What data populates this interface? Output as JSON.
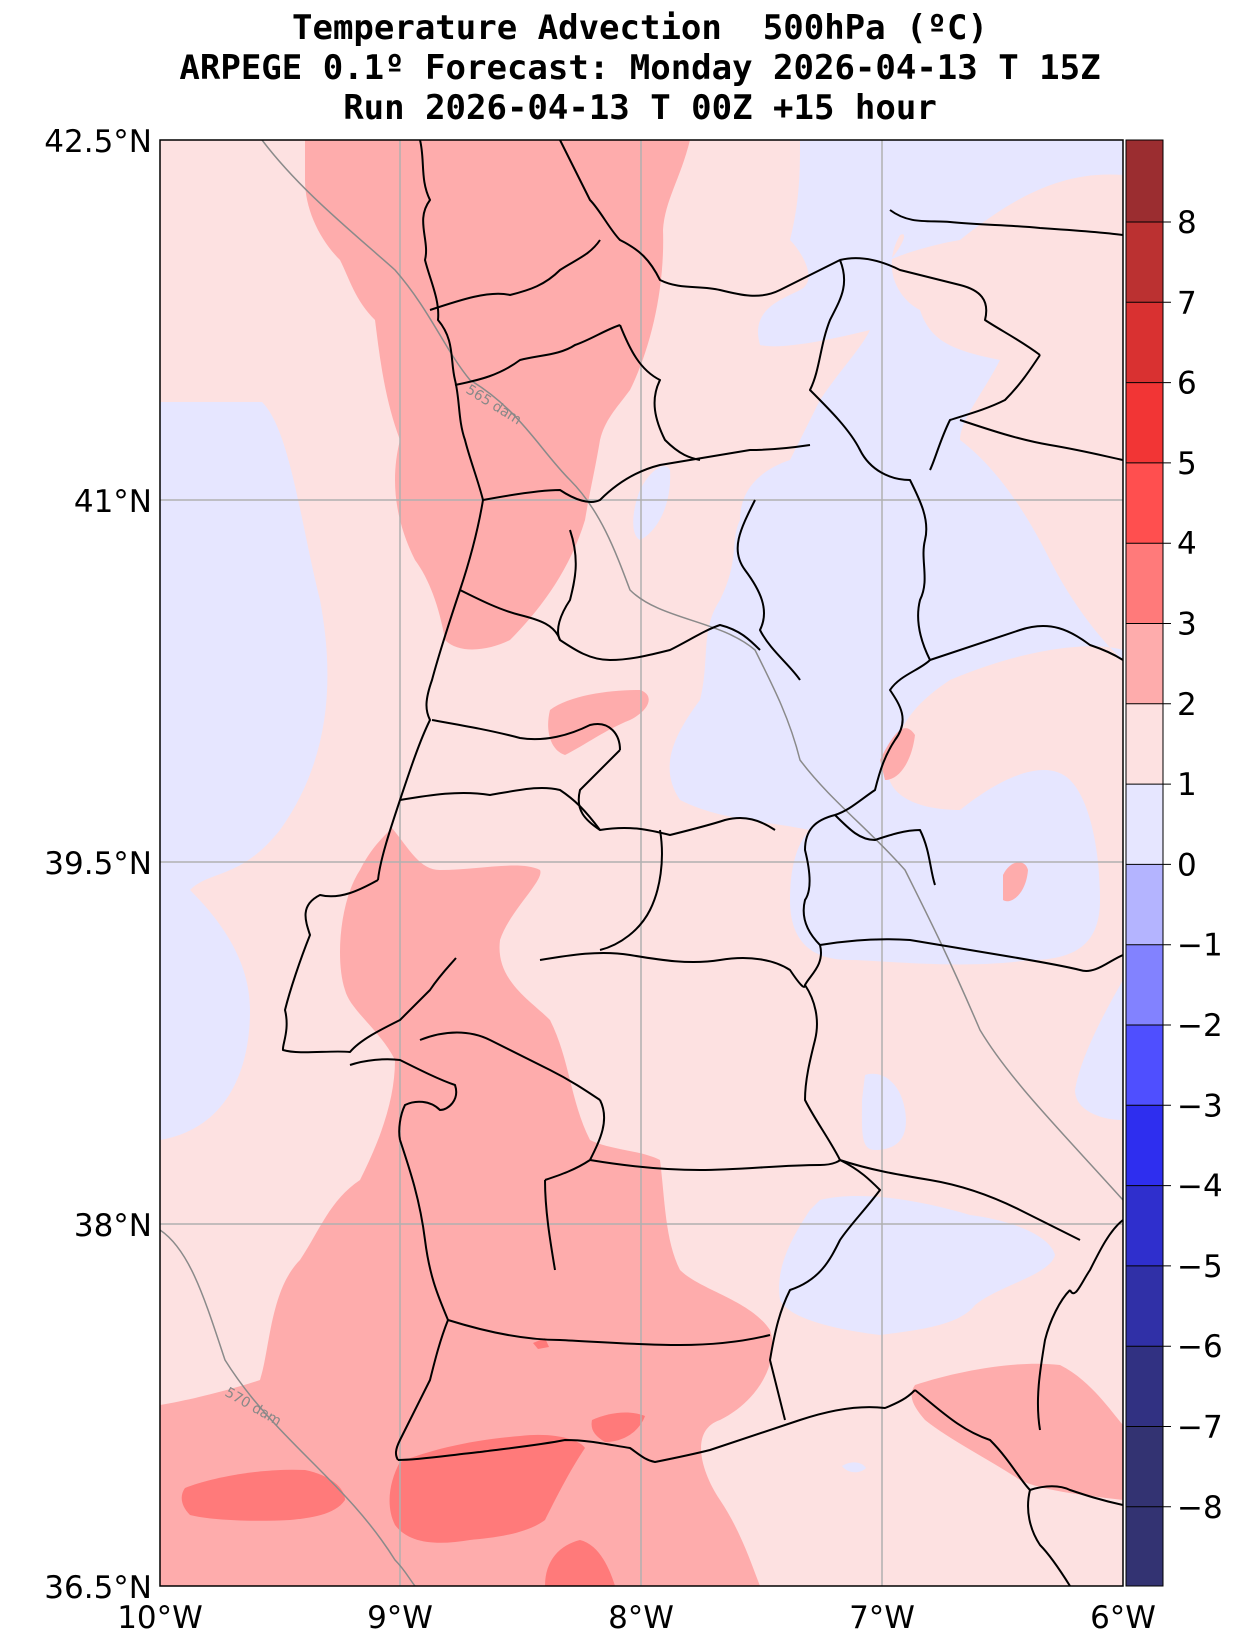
{
  "title": {
    "line1": "Temperature Advection  500hPa (ºC)",
    "line2": "ARPEGE 0.1º Forecast: Monday 2026-04-13 T 15Z",
    "line3": "Run 2026-04-13 T 00Z +15 hour"
  },
  "map": {
    "lon_range": [
      -10,
      -6
    ],
    "lat_range": [
      36.5,
      42.5
    ],
    "lon_ticks": [
      "10°W",
      "9°W",
      "8°W",
      "7°W",
      "6°W"
    ],
    "lat_ticks": [
      "42.5°N",
      "41°N",
      "39.5°N",
      "38°N",
      "36.5°N"
    ],
    "grid": true,
    "background_color": "#fde1e1",
    "contour_labels": [
      "565 dam",
      "570 dam"
    ]
  },
  "colorbar": {
    "levels": [
      -8,
      -7,
      -6,
      -5,
      -4,
      -3,
      -2,
      -1,
      0,
      1,
      2,
      3,
      4,
      5,
      6,
      7,
      8
    ],
    "tick_labels": [
      "8",
      "7",
      "6",
      "5",
      "4",
      "3",
      "2",
      "1",
      "0",
      "−1",
      "−2",
      "−3",
      "−4",
      "−5",
      "−6",
      "−7",
      "−8"
    ],
    "colors_top_to_bottom": [
      "#9b2d30",
      "#bb3131",
      "#d93131",
      "#f23535",
      "#ff4f4f",
      "#ff7a7a",
      "#feacac",
      "#fde1e1",
      "#e6e6ff",
      "#b4b4ff",
      "#8282ff",
      "#4f4fff",
      "#2e2eef",
      "#2f2fcd",
      "#3030a7",
      "#313182",
      "#333372"
    ]
  }
}
